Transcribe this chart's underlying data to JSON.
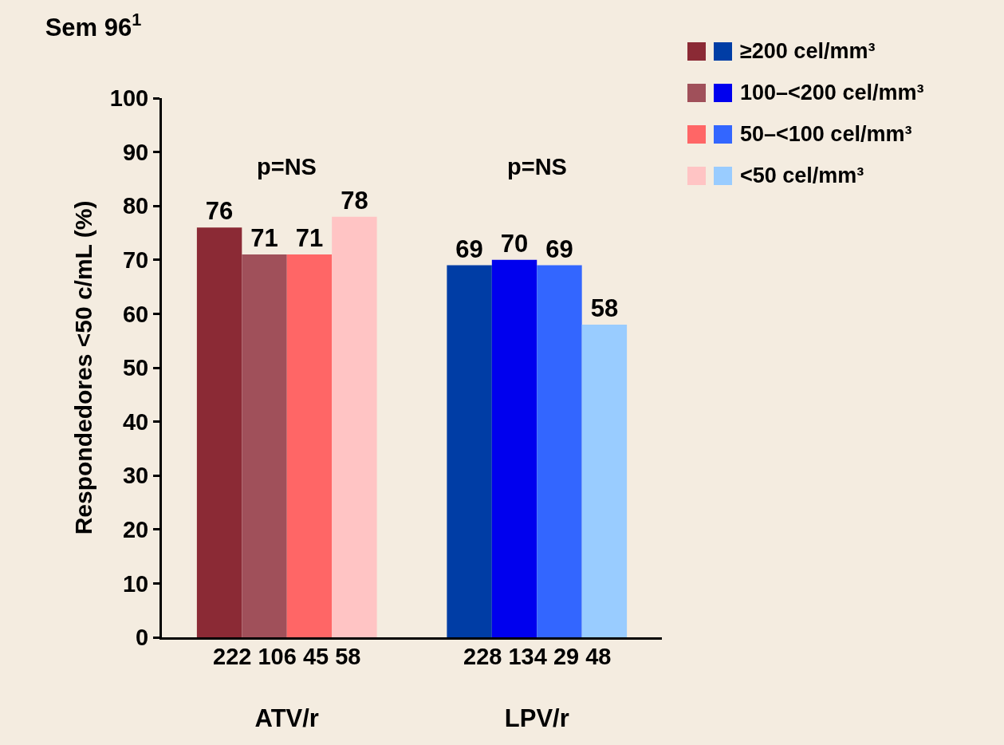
{
  "chart_data": {
    "type": "bar",
    "title": "Sem 96$^{1}$",
    "ylabel": "Respondedores <50 c/mL (%)",
    "categories": [
      "ATV/r",
      "LPV/r"
    ],
    "series": [
      {
        "name": "≥200 cel/mm³",
        "colors": [
          "#8b2a35",
          "#003da5"
        ],
        "values": [
          76,
          69
        ]
      },
      {
        "name": "100–<200 cel/mm³",
        "colors": [
          "#a0505a",
          "#0000ee"
        ],
        "values": [
          71,
          70
        ]
      },
      {
        "name": "50–<100 cel/mm³",
        "colors": [
          "#ff6666",
          "#3366ff"
        ],
        "values": [
          71,
          69
        ]
      },
      {
        "name": "<50 cel/mm³",
        "colors": [
          "#ffc4c4",
          "#99ccff"
        ],
        "values": [
          78,
          58
        ]
      }
    ],
    "ylim": [
      0,
      100
    ],
    "yticks": [
      0,
      10,
      20,
      30,
      40,
      50,
      60,
      70,
      80,
      90,
      100
    ],
    "grid": false,
    "legend": "top right",
    "data_labels": true,
    "annotations": [
      "p=NS",
      "p=NS",
      {
        "text": "222 106 45 58",
        "x": "ATV/r",
        "y": 0
      },
      {
        "text": "228 134 29 48",
        "x": "LPV/r",
        "y": 0
      }
    ]
  }
}
